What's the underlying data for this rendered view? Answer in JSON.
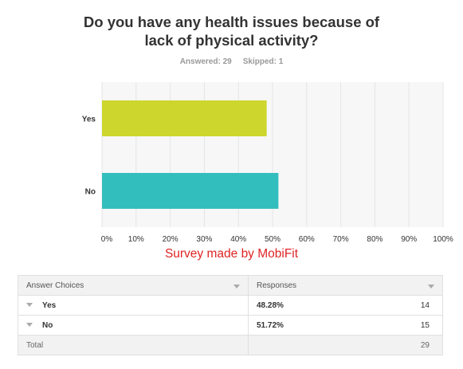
{
  "header": {
    "title_line1": "Do you have any health issues because of",
    "title_line2": "lack of physical activity?",
    "answered": "Answered: 29",
    "skipped": "Skipped: 1"
  },
  "caption": "Survey made by MobiFit",
  "colors": {
    "yes_bar": "#cdd62d",
    "no_bar": "#33bebe",
    "grid": "#e5e5e5"
  },
  "chart_data": {
    "type": "bar",
    "orientation": "horizontal",
    "categories": [
      "Yes",
      "No"
    ],
    "values": [
      48.28,
      51.72
    ],
    "colors": [
      "#cdd62d",
      "#33bebe"
    ],
    "xlim": [
      0,
      100
    ],
    "x_ticks": [
      "0%",
      "10%",
      "20%",
      "30%",
      "40%",
      "50%",
      "60%",
      "70%",
      "80%",
      "90%",
      "100%"
    ],
    "grid": true
  },
  "table": {
    "headers": [
      "Answer Choices",
      "Responses"
    ],
    "rows": [
      {
        "choice": "Yes",
        "percent": "48.28%",
        "count": "14"
      },
      {
        "choice": "No",
        "percent": "51.72%",
        "count": "15"
      }
    ],
    "total_label": "Total",
    "total_count": "29"
  }
}
